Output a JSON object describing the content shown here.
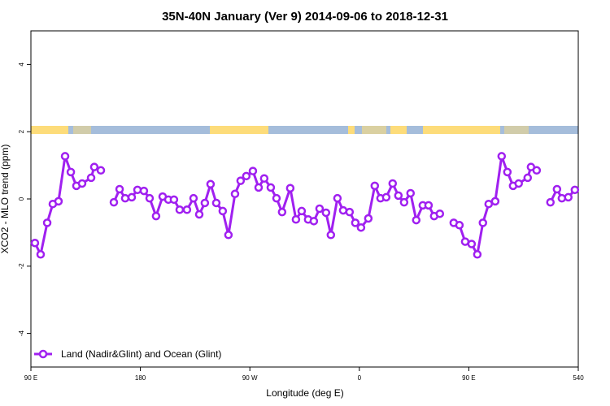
{
  "chart_data": {
    "type": "line",
    "title": "35N-40N January (Ver 9)   2014-09-06 to 2018-12-31",
    "x_label": "Longitude (deg E)",
    "y_label": "XCO2 - MLO trend (ppm)",
    "xlim": [
      90,
      540
    ],
    "ylim": [
      -5,
      5
    ],
    "xticks": [
      {
        "value": 90,
        "label": "90 E"
      },
      180,
      {
        "value": 270,
        "label": "90 W"
      },
      {
        "value": 360,
        "label": "0"
      },
      {
        "value": 450,
        "label": "90 E"
      },
      540
    ],
    "yticks": [
      -4,
      -2,
      0,
      2,
      4
    ],
    "legend": "lower left",
    "x": [
      93.3,
      98.0,
      103.4,
      108.0,
      112.7,
      118.1,
      122.8,
      127.4,
      132.1,
      139.5,
      142.1,
      147.5,
      152.8,
      158.2,
      162.9,
      167.5,
      172.9,
      177.6,
      182.9,
      187.6,
      192.9,
      198.3,
      203.0,
      207.6,
      212.3,
      218.3,
      223.7,
      228.4,
      233.0,
      237.7,
      242.4,
      247.7,
      252.4,
      257.8,
      262.4,
      267.1,
      272.5,
      277.2,
      281.8,
      287.2,
      291.9,
      296.5,
      303.2,
      307.9,
      312.6,
      317.9,
      322.6,
      327.3,
      332.6,
      336.6,
      342.0,
      346.7,
      352.0,
      356.7,
      361.4,
      367.4,
      372.7,
      377.4,
      382.1,
      387.4,
      392.1,
      396.8,
      402.1,
      406.8,
      412.2,
      416.9,
      421.5,
      426.2,
      431.9,
      437.6,
      442.3,
      447.0,
      452.3,
      457.0,
      461.6,
      466.3,
      471.7,
      477.0,
      481.7,
      486.4,
      491.0,
      498.4,
      501.1,
      505.8,
      511.5,
      517.1,
      522.5,
      526.5,
      531.8,
      537.2
    ],
    "series": [
      {
        "name": "Land (Nadir&Glint) and Ocean (Glint)",
        "color": "#a020f0",
        "values": [
          -1.31,
          -1.65,
          -0.71,
          -0.15,
          -0.07,
          1.27,
          0.8,
          0.39,
          0.46,
          0.63,
          0.95,
          0.85,
          null,
          -0.1,
          0.29,
          0.02,
          0.05,
          0.27,
          0.24,
          0.02,
          -0.51,
          0.07,
          -0.02,
          -0.02,
          -0.32,
          -0.32,
          0.02,
          -0.46,
          -0.12,
          0.44,
          -0.12,
          -0.36,
          -1.07,
          0.15,
          0.54,
          0.68,
          0.83,
          0.34,
          0.61,
          0.34,
          0.02,
          -0.39,
          0.32,
          -0.61,
          -0.36,
          -0.61,
          -0.66,
          -0.29,
          -0.41,
          -1.07,
          0.02,
          -0.34,
          -0.39,
          -0.71,
          -0.85,
          -0.58,
          0.39,
          0.02,
          0.05,
          0.46,
          0.1,
          -0.1,
          0.17,
          -0.63,
          -0.19,
          -0.19,
          -0.51,
          -0.44,
          null,
          -0.71,
          -0.78,
          -1.27,
          -1.34,
          -1.65,
          -0.71,
          -0.15,
          -0.07,
          1.27,
          0.8,
          0.39,
          0.46,
          0.63,
          0.95,
          0.85,
          null,
          -0.1,
          0.29,
          0.02,
          0.05,
          0.27
        ]
      }
    ]
  }
}
